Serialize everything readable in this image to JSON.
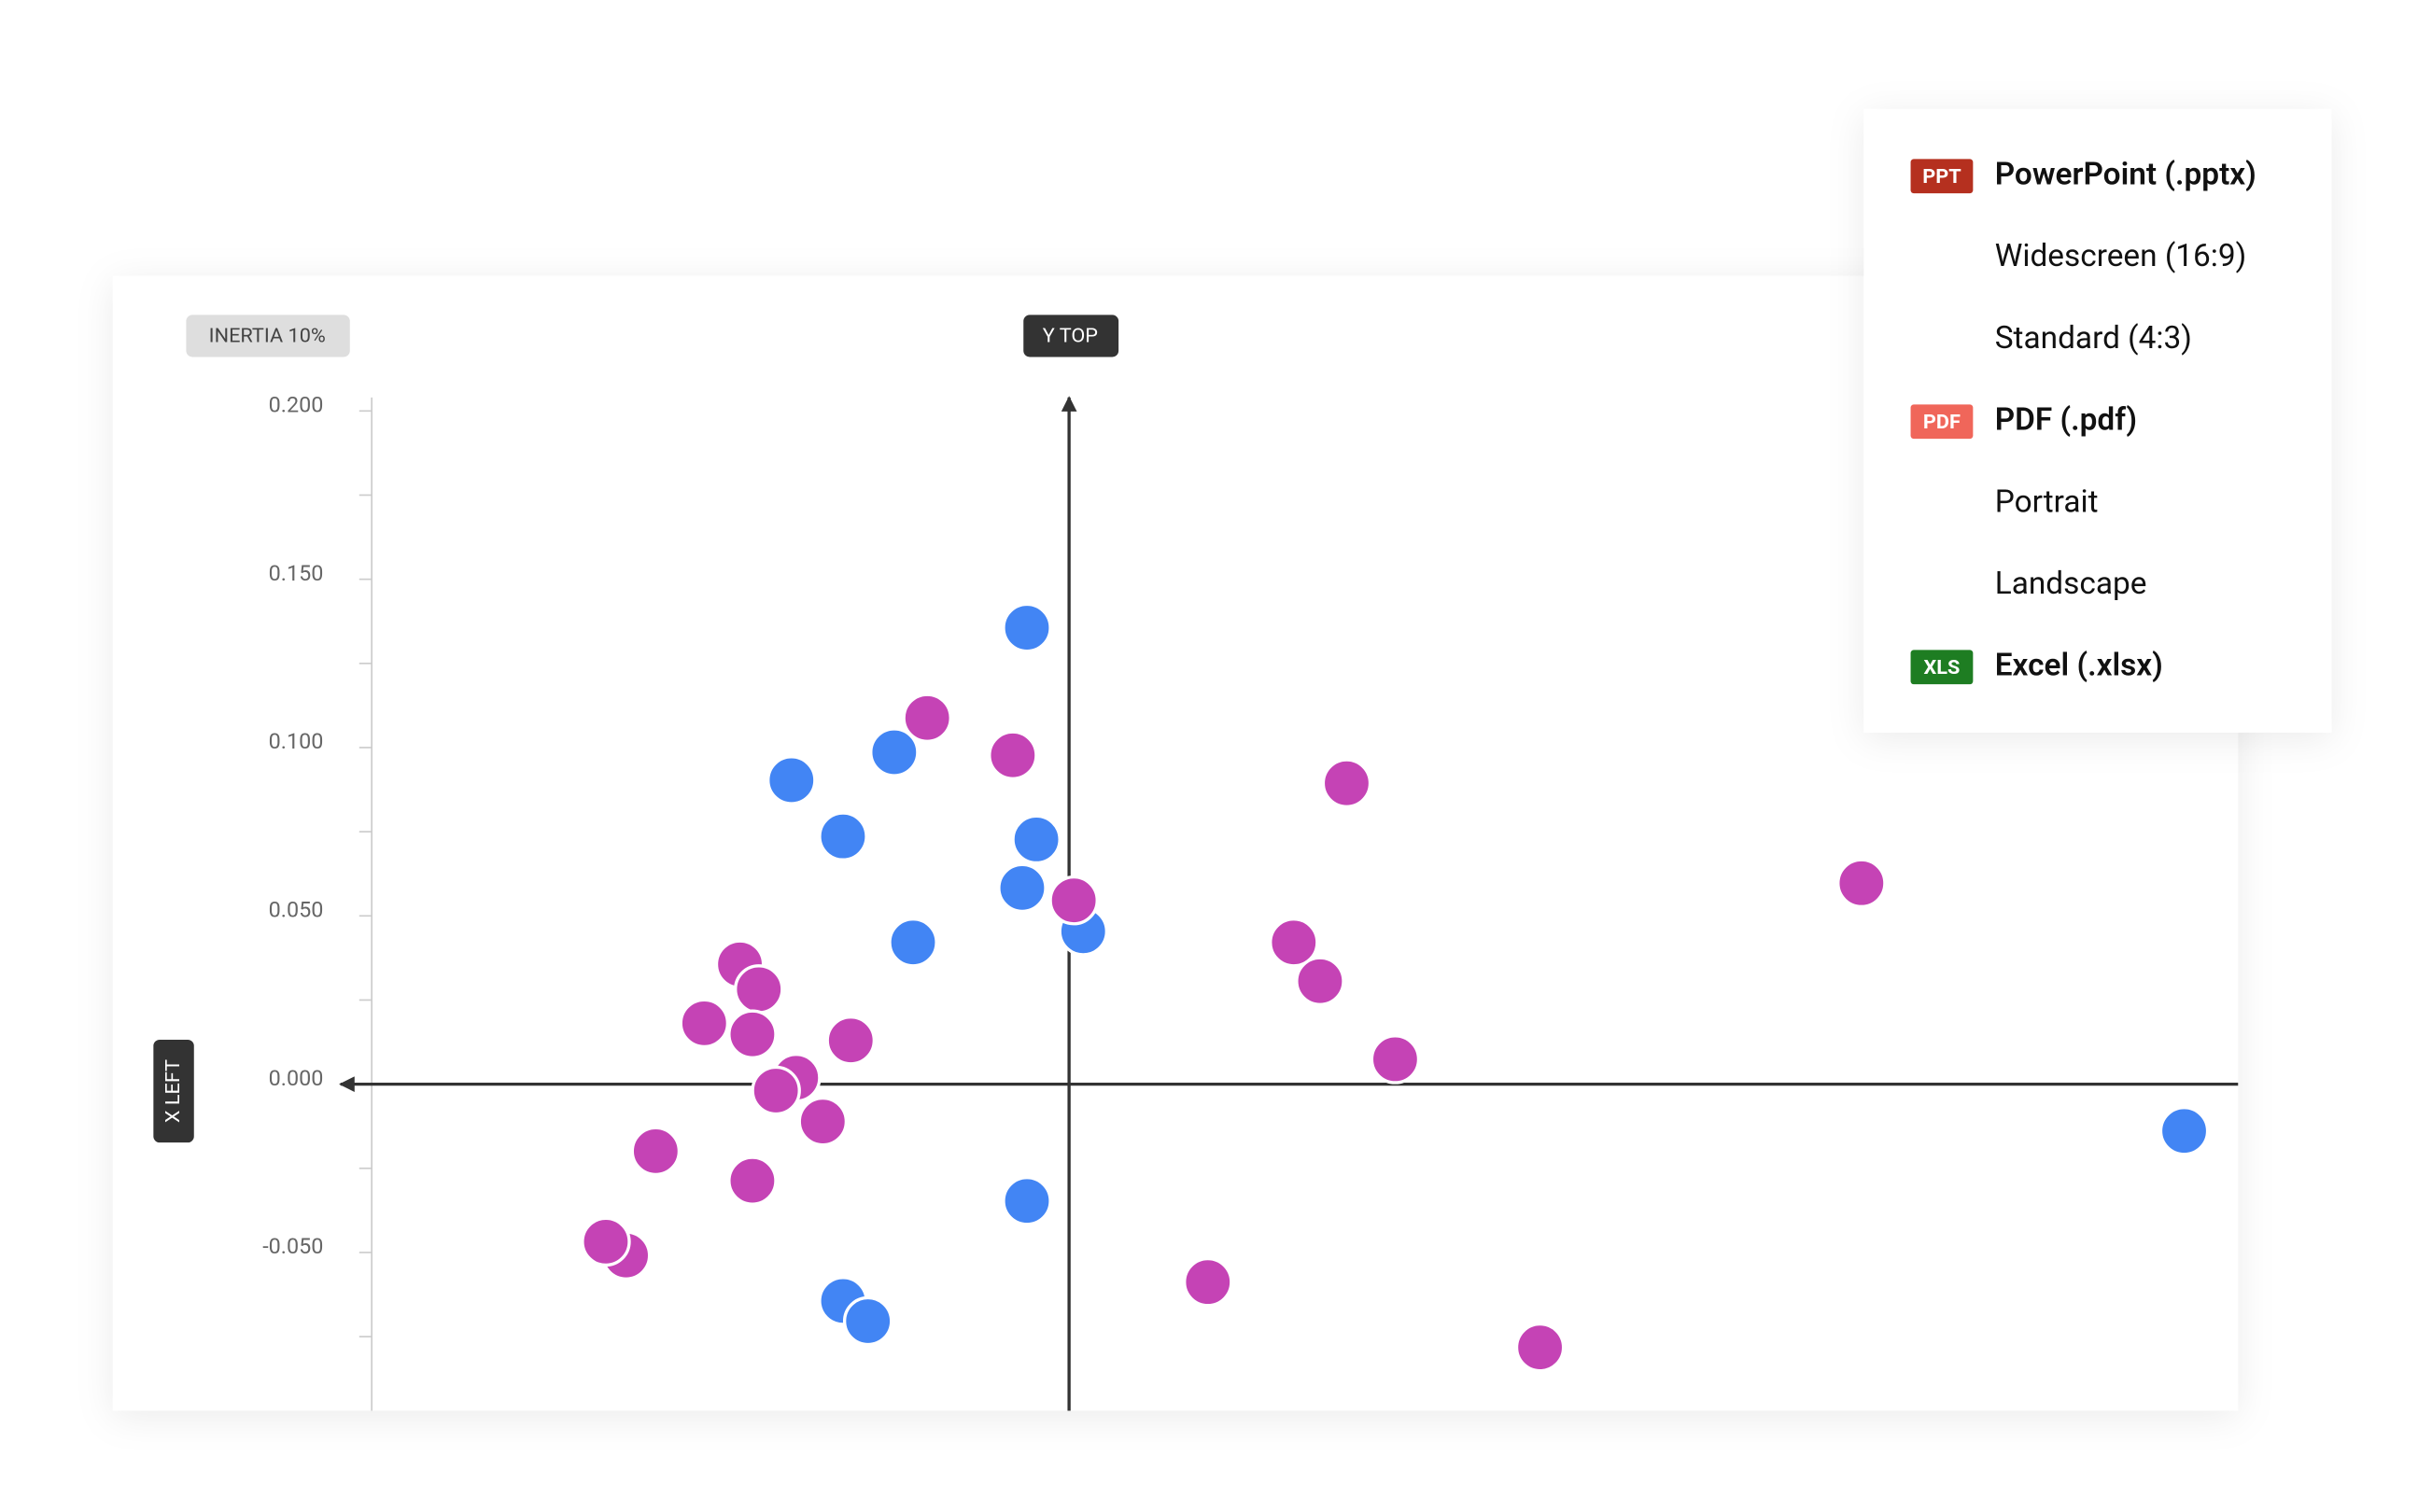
{
  "chart_data": {
    "type": "scatter",
    "inertia_label": "INERTIA 10%",
    "y_axis_label": "Y TOP",
    "x_axis_label": "X LEFT",
    "xlim": [
      -0.207,
      0.347
    ],
    "ylim": [
      -0.097,
      0.204
    ],
    "yticks": [
      {
        "value": 0.2,
        "label": "0.200"
      },
      {
        "value": 0.15,
        "label": "0.150"
      },
      {
        "value": 0.1,
        "label": "0.100"
      },
      {
        "value": 0.05,
        "label": "0.050"
      },
      {
        "value": 0,
        "label": "0.000"
      },
      {
        "value": -0.05,
        "label": "-0.050"
      }
    ],
    "y_minor_ticks": [
      0.175,
      0.125,
      0.075,
      0.025,
      -0.025,
      -0.075
    ],
    "series": [
      {
        "color": "#c543b5",
        "x": [
          -0.0421,
          -0.0167,
          0.0824,
          0.2352,
          0.0667,
          0.0745,
          0.0968,
          -0.0977,
          -0.0921,
          -0.1083,
          -0.094,
          -0.0648,
          -0.081,
          -0.087,
          -0.0731,
          -0.1227,
          -0.094,
          -0.1315,
          -0.1375,
          0.0412,
          0.1398
        ],
        "values": [
          0.1088,
          0.0977,
          0.0894,
          0.0597,
          0.0421,
          0.0306,
          0.0074,
          0.0356,
          0.0282,
          0.0181,
          0.0148,
          0.013,
          0.0019,
          -0.0019,
          -0.0111,
          -0.0199,
          -0.0287,
          -0.0509,
          -0.0468,
          -0.0588,
          -0.0782
        ]
      },
      {
        "color": "#4285f4",
        "x": [
          -0.0125,
          -0.0519,
          -0.0824,
          -0.0671,
          -0.0097,
          -0.0139,
          -0.0463,
          0.0042,
          -0.0125,
          -0.0671,
          -0.0597,
          0.331
        ],
        "values": [
          0.1356,
          0.0986,
          0.0903,
          0.0736,
          0.0727,
          0.0583,
          0.0421,
          0.0454,
          -0.0347,
          -0.0644,
          -0.0704,
          -0.0139
        ]
      },
      {
        "color": "#c543b5",
        "x": [
          0.0014
        ],
        "values": [
          0.0546
        ]
      }
    ]
  },
  "export_menu": {
    "items": [
      {
        "badge": "PPT",
        "badge_color": "#b5301f",
        "label": "PowerPoint (.pptx)"
      },
      {
        "label": "Widescreen (16:9)"
      },
      {
        "label": "Standard (4:3)"
      },
      {
        "badge": "PDF",
        "badge_color": "#f0665a",
        "label": "PDF (.pdf)"
      },
      {
        "label": "Portrait"
      },
      {
        "label": "Landscape"
      },
      {
        "badge": "XLS",
        "badge_color": "#1e7d22",
        "label": "Excel (.xlsx)"
      }
    ]
  }
}
